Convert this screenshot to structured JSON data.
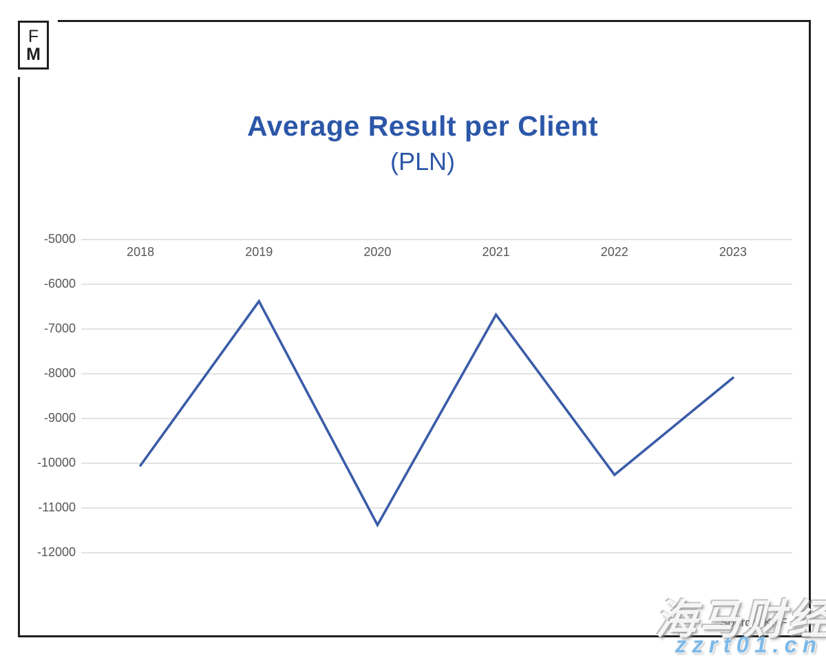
{
  "logo": {
    "line1": "F",
    "line2": "M"
  },
  "title": {
    "main": "Average Result per Client",
    "sub": "(PLN)",
    "color": "#2c57a8"
  },
  "source": {
    "label": "Source: KNF"
  },
  "watermark": {
    "cn_text": "海马财经",
    "url_text": "zzrt01.cn",
    "url_color": "#7db9e8"
  },
  "colors": {
    "line": "#3a5ca8",
    "grid": "#e2e2e2",
    "frame": "#1f1f1f",
    "tick_label": "#575757"
  },
  "chart_data": {
    "type": "line",
    "title": "Average Result per Client",
    "subtitle": "(PLN)",
    "categories": [
      "2018",
      "2019",
      "2020",
      "2021",
      "2022",
      "2023"
    ],
    "values": [
      -10050,
      -6380,
      -11380,
      -6680,
      -10260,
      -8090
    ],
    "series": [
      {
        "name": "Average Result per Client (PLN)",
        "values": [
          -10050,
          -6380,
          -11380,
          -6680,
          -10260,
          -8090
        ]
      }
    ],
    "ylim": [
      -12000,
      -5000
    ],
    "yticks": [
      -5000,
      -6000,
      -7000,
      -8000,
      -9000,
      -10000,
      -11000,
      -12000
    ],
    "xlabel": "",
    "ylabel": "",
    "grid": true,
    "legend_position": "none",
    "line_color": "#3a5ca8",
    "markers": false
  }
}
